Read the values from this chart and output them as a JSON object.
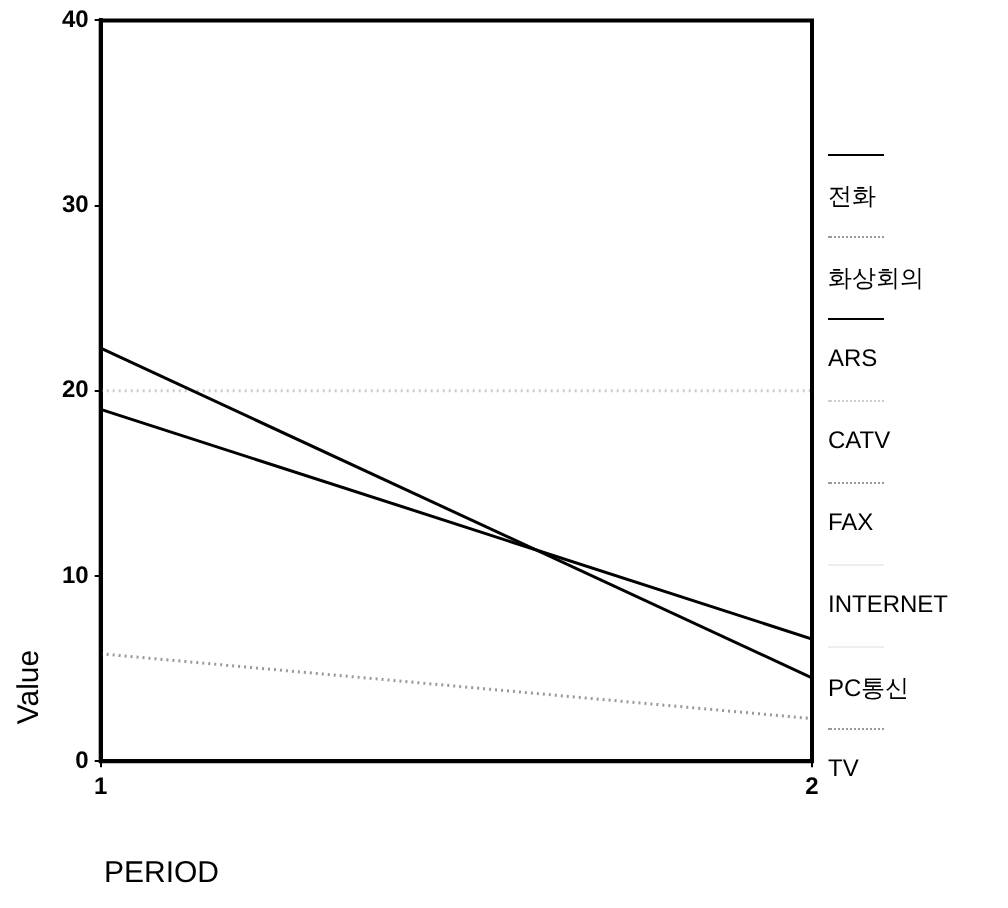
{
  "chart_data": {
    "type": "line",
    "xlabel": "PERIOD",
    "ylabel": "Value",
    "x": [
      1,
      2
    ],
    "xlim": [
      1,
      2
    ],
    "xticks": [
      1,
      2
    ],
    "ylim": [
      0,
      40
    ],
    "yticks": [
      0,
      10,
      20,
      30,
      40
    ],
    "grid": false,
    "legend": "right",
    "marker": "none",
    "series": [
      {
        "name": "전화",
        "color": "#000000",
        "line_style": "solid",
        "values": [
          22.3,
          4.5
        ]
      },
      {
        "name": "화상회의",
        "color": "#999999",
        "line_style": "dotted",
        "values": [
          null,
          null
        ]
      },
      {
        "name": "ARS",
        "color": "#000000",
        "line_style": "solid",
        "values": [
          19,
          6.6
        ]
      },
      {
        "name": "CATV",
        "color": "#cccccc",
        "line_style": "dotted",
        "values": [
          20,
          20
        ]
      },
      {
        "name": "FAX",
        "color": "#999999",
        "line_style": "dotted",
        "values": [
          null,
          null
        ]
      },
      {
        "name": "INTERNET",
        "color": "#eeeeee",
        "line_style": "solid",
        "values": [
          null,
          null
        ]
      },
      {
        "name": "PC통신",
        "color": "#eeeeee",
        "line_style": "solid",
        "values": [
          null,
          null
        ]
      },
      {
        "name": "TV",
        "color": "#999999",
        "line_style": "dotted",
        "values": [
          5.8,
          2.3
        ]
      }
    ]
  }
}
